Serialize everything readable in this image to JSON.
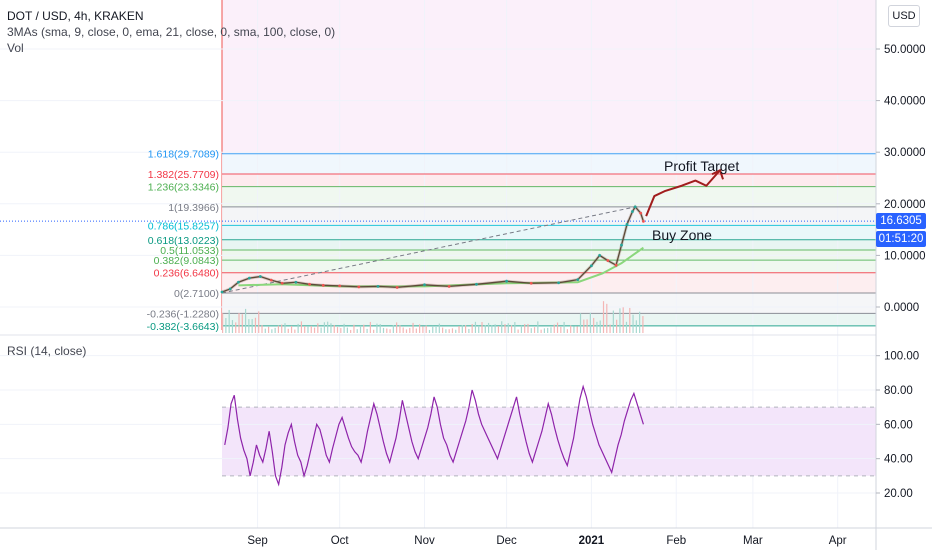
{
  "header": {
    "title": "DOT / USD, 4h, KRAKEN",
    "indicators": "3MAs (sma, 9, close, 0, ema, 21, close, 0, sma, 100, close, 0)",
    "volume_label": "Vol",
    "currency_button": "USD"
  },
  "price_tags": {
    "last_price": "16.6305",
    "countdown": "01:51:20"
  },
  "annotations": {
    "profit_target": "Profit Target",
    "buy_zone": "Buy Zone"
  },
  "rsi": {
    "label": "RSI (14, close)",
    "yticks": [
      "100.00",
      "80.00",
      "60.00",
      "40.00",
      "20.00"
    ],
    "ylim": [
      0,
      110
    ],
    "band": [
      30,
      70
    ],
    "color": "#8e24aa"
  },
  "colors": {
    "candle_up": "#26a69a",
    "candle_down": "#ef5350",
    "grid": "#f0f3fa",
    "text": "#131722",
    "last_price_tag": "#2962ff",
    "annotation_arrow": "#a11d1d"
  },
  "chart_data": [
    {
      "type": "line",
      "ylim": [
        -5,
        57
      ],
      "yticks": [
        "50.0000",
        "40.0000",
        "30.0000",
        "20.0000",
        "10.0000",
        "0.0000"
      ],
      "ytick_values": [
        50,
        40,
        30,
        20,
        10,
        0
      ],
      "x_tick_labels": [
        "Sep",
        "Oct",
        "Nov",
        "Dec",
        "2021",
        "Feb",
        "Mar",
        "Apr"
      ],
      "x_tick_dates": [
        "2020-09-01",
        "2020-10-01",
        "2020-11-01",
        "2020-12-01",
        "2021-01-01",
        "2021-02-01",
        "2021-03-01",
        "2021-04-01"
      ],
      "x_range": [
        "2020-08-19",
        "2021-04-15"
      ],
      "last_price": 16.6305,
      "fib_levels": [
        {
          "label": "1.618(29.7089)",
          "value": 29.7089,
          "color": "#2196f3"
        },
        {
          "label": "1.382(25.7709)",
          "value": 25.7709,
          "color": "#f23645"
        },
        {
          "label": "1.236(23.3346)",
          "value": 23.3346,
          "color": "#4caf50"
        },
        {
          "label": "1(19.3966)",
          "value": 19.3966,
          "color": "#787b86"
        },
        {
          "label": "0.786(15.8257)",
          "value": 15.8257,
          "color": "#00bcd4"
        },
        {
          "label": "0.618(13.0223)",
          "value": 13.0223,
          "color": "#089981"
        },
        {
          "label": "0.5(11.0533)",
          "value": 11.0533,
          "color": "#4caf50"
        },
        {
          "label": "0.382(9.0843)",
          "value": 9.0843,
          "color": "#4caf50"
        },
        {
          "label": "0.236(6.6480)",
          "value": 6.648,
          "color": "#f23645"
        },
        {
          "label": "0(2.7100)",
          "value": 2.71,
          "color": "#787b86"
        },
        {
          "label": "-0.236(-1.2280)",
          "value": -1.228,
          "color": "#787b86"
        },
        {
          "label": "-0.382(-3.6643)",
          "value": -3.6643,
          "color": "#089981"
        }
      ],
      "price_series": {
        "x": [
          "2020-08-19",
          "2020-08-22",
          "2020-08-25",
          "2020-08-29",
          "2020-09-02",
          "2020-09-06",
          "2020-09-10",
          "2020-09-15",
          "2020-09-20",
          "2020-09-25",
          "2020-10-01",
          "2020-10-08",
          "2020-10-15",
          "2020-10-22",
          "2020-11-01",
          "2020-11-10",
          "2020-11-20",
          "2020-12-01",
          "2020-12-10",
          "2020-12-20",
          "2020-12-27",
          "2021-01-01",
          "2021-01-04",
          "2021-01-07",
          "2021-01-10",
          "2021-01-12",
          "2021-01-14",
          "2021-01-16",
          "2021-01-17",
          "2021-01-19",
          "2021-01-20"
        ],
        "close": [
          2.9,
          3.5,
          4.8,
          5.6,
          5.9,
          5.2,
          4.6,
          4.8,
          4.4,
          4.2,
          4.1,
          3.9,
          4.0,
          3.8,
          4.3,
          4.0,
          4.4,
          5.0,
          4.6,
          4.7,
          5.3,
          8.0,
          10.0,
          9.0,
          8.1,
          12.0,
          16.0,
          18.5,
          19.4,
          18.2,
          16.6
        ]
      },
      "ma_series": {
        "x": [
          "2020-08-25",
          "2020-09-10",
          "2020-10-01",
          "2020-11-01",
          "2020-12-01",
          "2020-12-27",
          "2021-01-05",
          "2021-01-12",
          "2021-01-20"
        ],
        "values": [
          4.2,
          4.4,
          4.0,
          4.0,
          4.6,
          4.8,
          6.5,
          8.5,
          11.5
        ]
      },
      "projection": {
        "x": [
          "2021-01-21",
          "2021-01-24",
          "2021-01-28",
          "2021-02-03",
          "2021-02-08",
          "2021-02-12",
          "2021-02-17"
        ],
        "values": [
          17.6,
          21.5,
          22.5,
          23.5,
          24.5,
          23.5,
          26.5
        ]
      }
    },
    {
      "type": "line",
      "title": "RSI (14, close)",
      "ylim": [
        0,
        110
      ],
      "x_range": [
        "2020-08-19",
        "2021-04-15"
      ],
      "values_start": "2020-08-20",
      "values_end": "2021-01-20",
      "values": [
        48,
        58,
        72,
        77,
        63,
        52,
        45,
        40,
        30,
        38,
        48,
        42,
        38,
        46,
        56,
        44,
        30,
        25,
        35,
        48,
        55,
        60,
        50,
        42,
        38,
        30,
        36,
        44,
        52,
        60,
        57,
        50,
        42,
        38,
        46,
        53,
        60,
        64,
        58,
        52,
        47,
        44,
        42,
        38,
        46,
        56,
        64,
        72,
        66,
        58,
        50,
        43,
        38,
        45,
        52,
        62,
        74,
        66,
        58,
        50,
        44,
        40,
        46,
        52,
        58,
        66,
        76,
        70,
        60,
        52,
        48,
        42,
        38,
        44,
        50,
        56,
        62,
        70,
        80,
        74,
        66,
        60,
        56,
        52,
        48,
        44,
        40,
        46,
        52,
        58,
        64,
        70,
        76,
        66,
        58,
        50,
        43,
        38,
        44,
        50,
        56,
        64,
        72,
        66,
        58,
        51,
        45,
        40,
        36,
        44,
        52,
        64,
        75,
        82,
        76,
        68,
        60,
        54,
        48,
        44,
        40,
        36,
        32,
        40,
        48,
        54,
        62,
        68,
        74,
        78,
        72,
        66,
        60
      ]
    }
  ]
}
